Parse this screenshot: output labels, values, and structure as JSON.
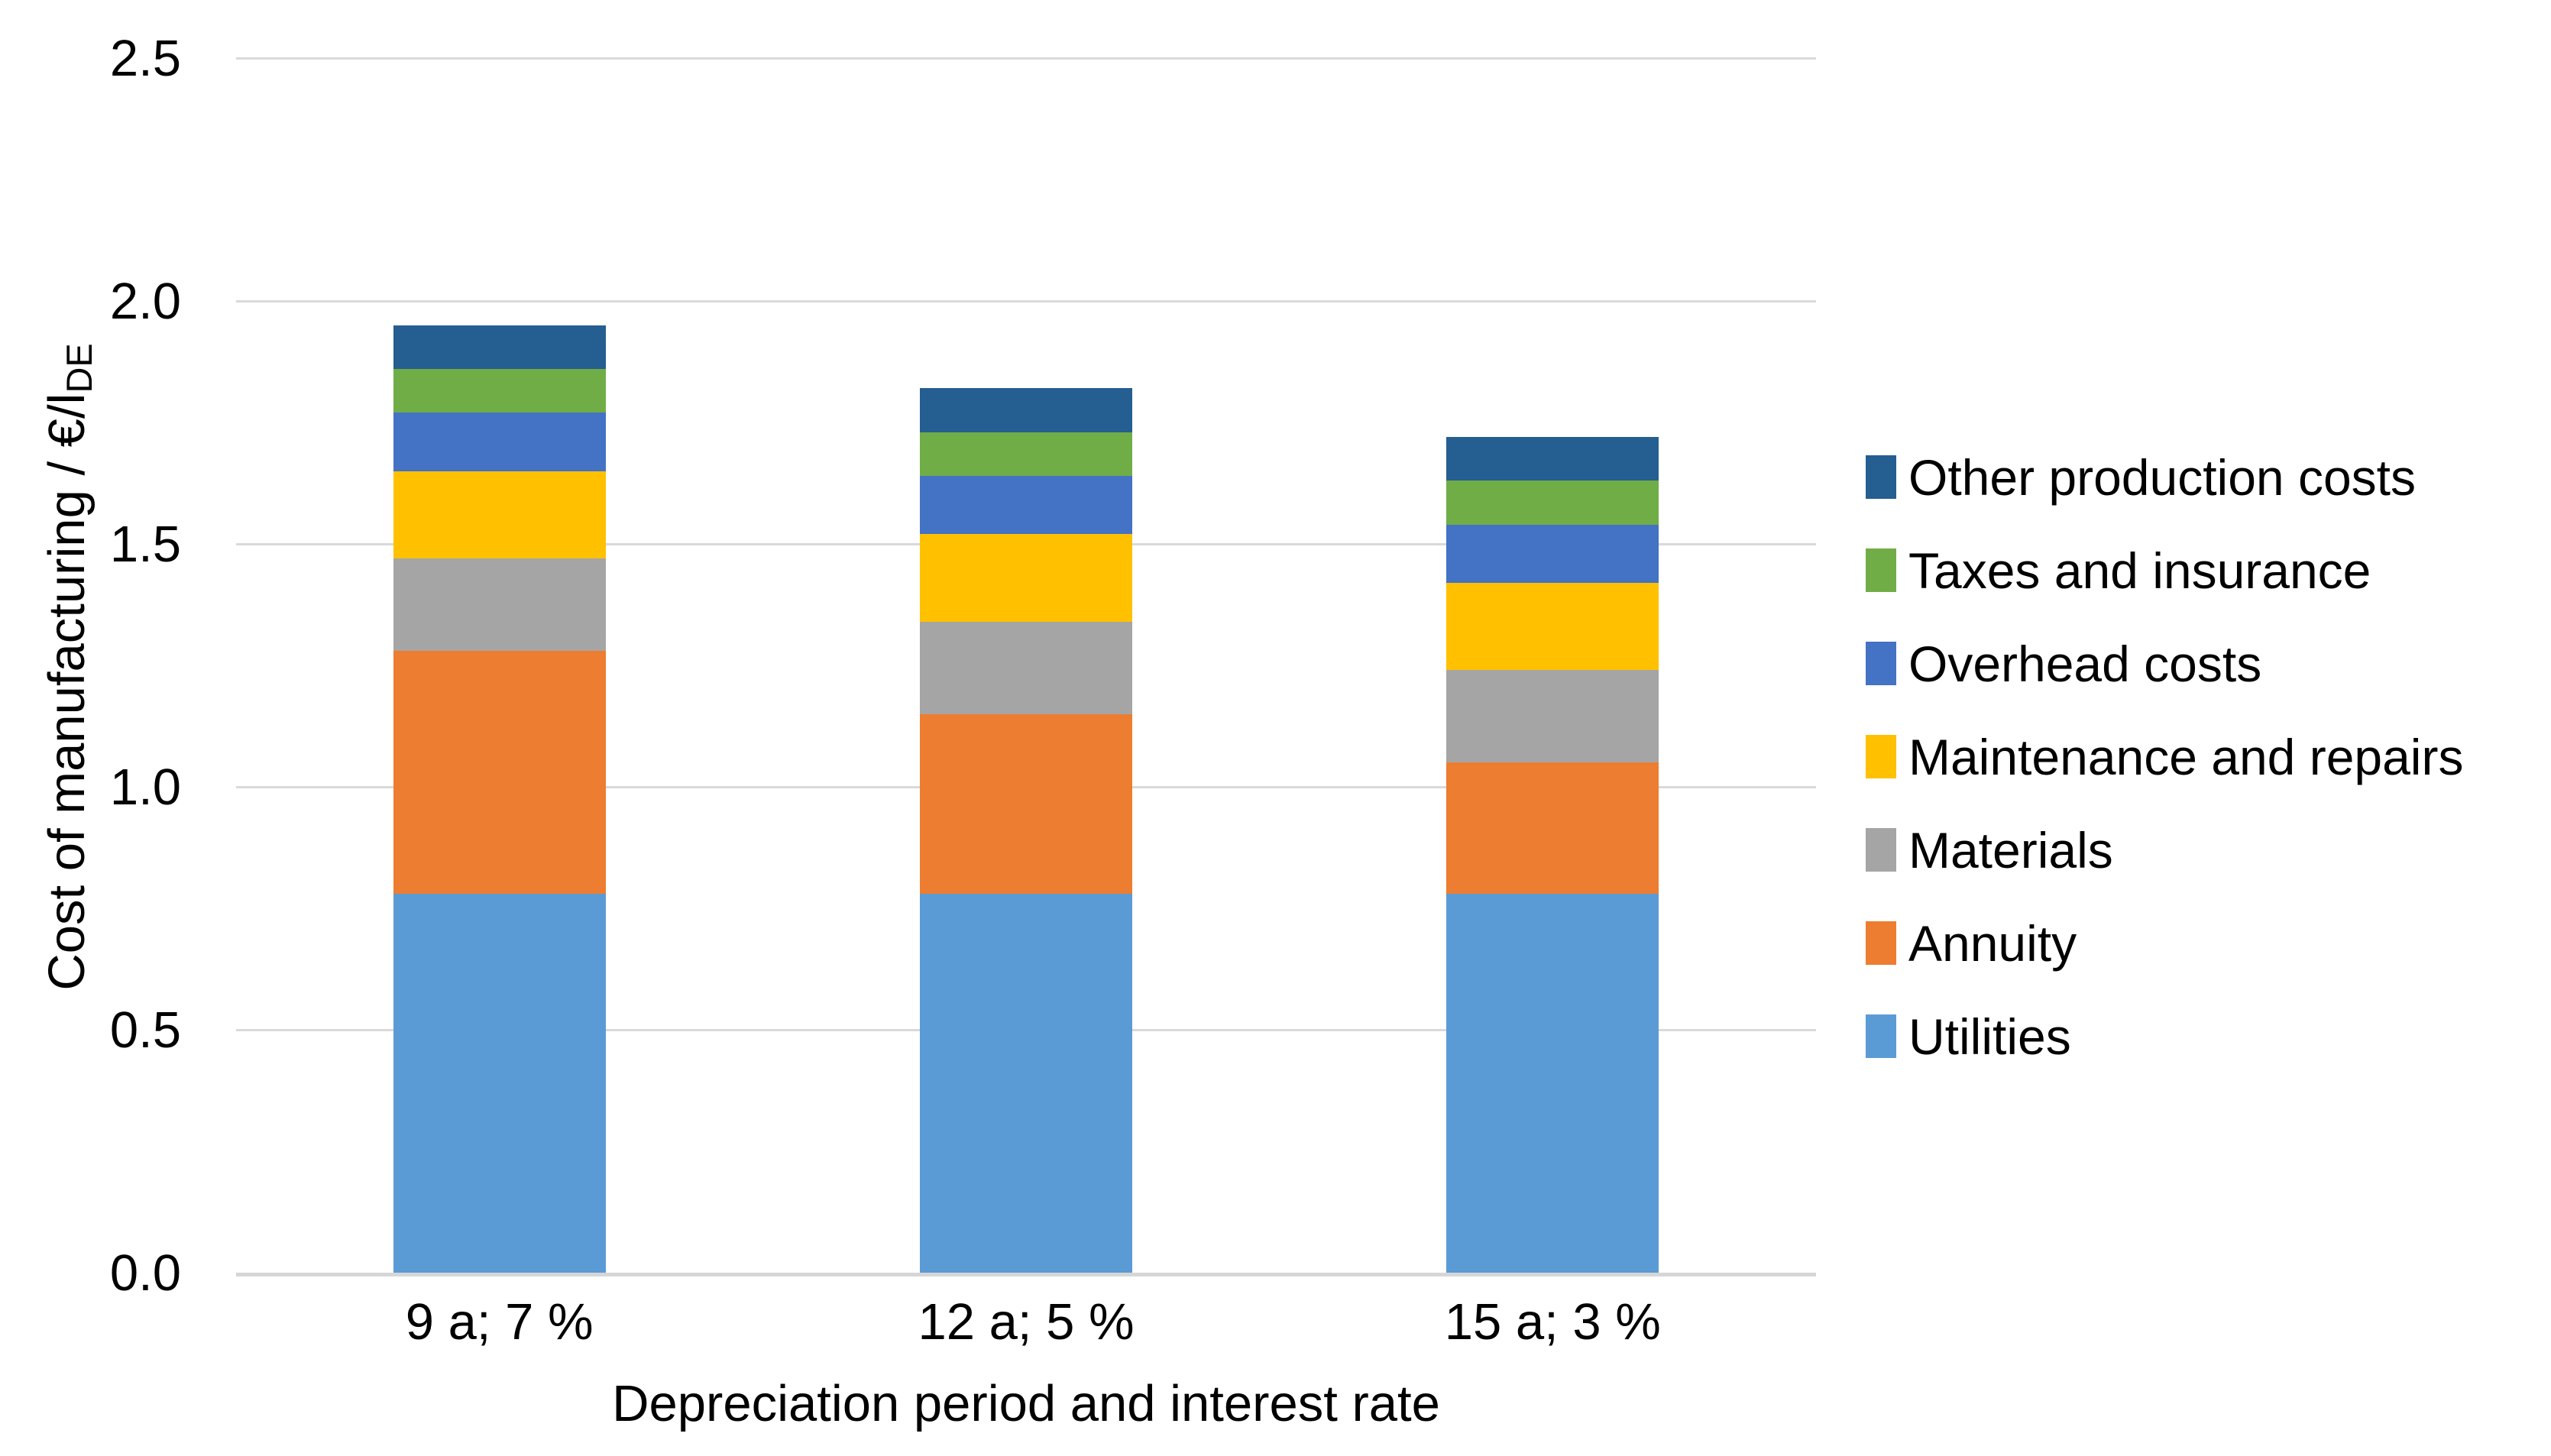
{
  "chart_data": {
    "type": "bar",
    "stacked": true,
    "title": "",
    "xlabel": "Depreciation period and interest rate",
    "ylabel": "Cost of manufacturing / €/l",
    "ylabel_subscript": "DE",
    "categories": [
      "9 a; 7 %",
      "12 a; 5 %",
      "15 a; 3 %"
    ],
    "series": [
      {
        "name": "Utilities",
        "color": "#5B9BD5",
        "values": [
          0.78,
          0.78,
          0.78
        ]
      },
      {
        "name": "Annuity",
        "color": "#ED7D31",
        "values": [
          0.5,
          0.37,
          0.27
        ]
      },
      {
        "name": "Materials",
        "color": "#A5A5A5",
        "values": [
          0.19,
          0.19,
          0.19
        ]
      },
      {
        "name": "Maintenance and repairs",
        "color": "#FFC000",
        "values": [
          0.18,
          0.18,
          0.18
        ]
      },
      {
        "name": "Overhead costs",
        "color": "#4472C4",
        "values": [
          0.12,
          0.12,
          0.12
        ]
      },
      {
        "name": "Taxes and insurance",
        "color": "#70AD47",
        "values": [
          0.09,
          0.09,
          0.09
        ]
      },
      {
        "name": "Other production costs",
        "color": "#255E91",
        "values": [
          0.09,
          0.09,
          0.09
        ]
      }
    ],
    "bar_totals": [
      1.95,
      1.82,
      1.72
    ],
    "ylim": [
      0,
      2.5
    ],
    "ytick_step": 0.5,
    "yticks": [
      "0.0",
      "0.5",
      "1.0",
      "1.5",
      "2.0",
      "2.5"
    ],
    "grid": true,
    "gridline_color": "#D9D9D9",
    "legend_position": "right",
    "legend_order_top_to_bottom": [
      "Other production costs",
      "Taxes and insurance",
      "Overhead costs",
      "Maintenance and repairs",
      "Materials",
      "Annuity",
      "Utilities"
    ]
  }
}
